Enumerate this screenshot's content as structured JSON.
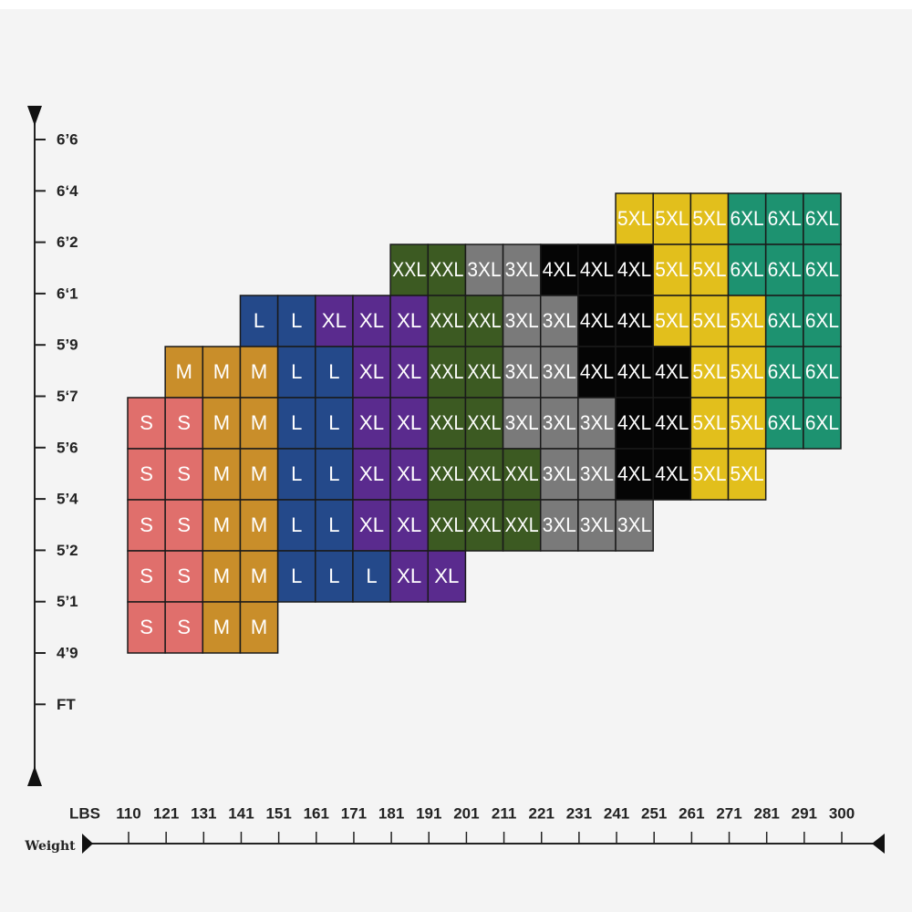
{
  "height_labels": [
    "6’6",
    "6‘4",
    "6’2",
    "6‘1",
    "5’9",
    "5‘7",
    "5’6",
    "5’4",
    "5’2",
    "5’1",
    "4’9",
    "FT"
  ],
  "weight_title": "Weight",
  "weight_labels": [
    "LBS",
    "110",
    "121",
    "131",
    "141",
    "151",
    "161",
    "171",
    "181",
    "191",
    "201",
    "211",
    "221",
    "231",
    "241",
    "251",
    "261",
    "271",
    "281",
    "291",
    "300"
  ],
  "size_colors": {
    "S": "#e06f6c",
    "M": "#c98e2a",
    "L": "#24498a",
    "XL": "#5a2b8e",
    "XXL": "#3c5a22",
    "3XL": "#7a7a7a",
    "4XL": "#050505",
    "5XL": "#e2bf1c",
    "6XL": "#1d9270"
  },
  "rows": [
    [
      null,
      null,
      null,
      null,
      null,
      null,
      null,
      null,
      null,
      null,
      null,
      null,
      null,
      "5XL",
      "5XL",
      "5XL",
      "6XL",
      "6XL",
      "6XL"
    ],
    [
      null,
      null,
      null,
      null,
      null,
      null,
      null,
      "XXL",
      "XXL",
      "3XL",
      "3XL",
      "4XL",
      "4XL",
      "4XL",
      "5XL",
      "5XL",
      "6XL",
      "6XL",
      "6XL"
    ],
    [
      null,
      null,
      null,
      "L",
      "L",
      "XL",
      "XL",
      "XL",
      "XXL",
      "XXL",
      "3XL",
      "3XL",
      "4XL",
      "4XL",
      "5XL",
      "5XL",
      "5XL",
      "6XL",
      "6XL"
    ],
    [
      null,
      "M",
      "M",
      "M",
      "L",
      "L",
      "XL",
      "XL",
      "XXL",
      "XXL",
      "3XL",
      "3XL",
      "4XL",
      "4XL",
      "4XL",
      "5XL",
      "5XL",
      "6XL",
      "6XL"
    ],
    [
      "S",
      "S",
      "M",
      "M",
      "L",
      "L",
      "XL",
      "XL",
      "XXL",
      "XXL",
      "3XL",
      "3XL",
      "3XL",
      "4XL",
      "4XL",
      "5XL",
      "5XL",
      "6XL",
      "6XL"
    ],
    [
      "S",
      "S",
      "M",
      "M",
      "L",
      "L",
      "XL",
      "XL",
      "XXL",
      "XXL",
      "XXL",
      "3XL",
      "3XL",
      "4XL",
      "4XL",
      "5XL",
      "5XL",
      null,
      null
    ],
    [
      "S",
      "S",
      "M",
      "M",
      "L",
      "L",
      "XL",
      "XL",
      "XXL",
      "XXL",
      "XXL",
      "3XL",
      "3XL",
      "3XL",
      null,
      null,
      null,
      null,
      null
    ],
    [
      "S",
      "S",
      "M",
      "M",
      "L",
      "L",
      "L",
      "XL",
      "XL",
      null,
      null,
      null,
      null,
      null,
      null,
      null,
      null,
      null,
      null
    ],
    [
      "S",
      "S",
      "M",
      "M",
      null,
      null,
      null,
      null,
      null,
      null,
      null,
      null,
      null,
      null,
      null,
      null,
      null,
      null,
      null
    ]
  ]
}
